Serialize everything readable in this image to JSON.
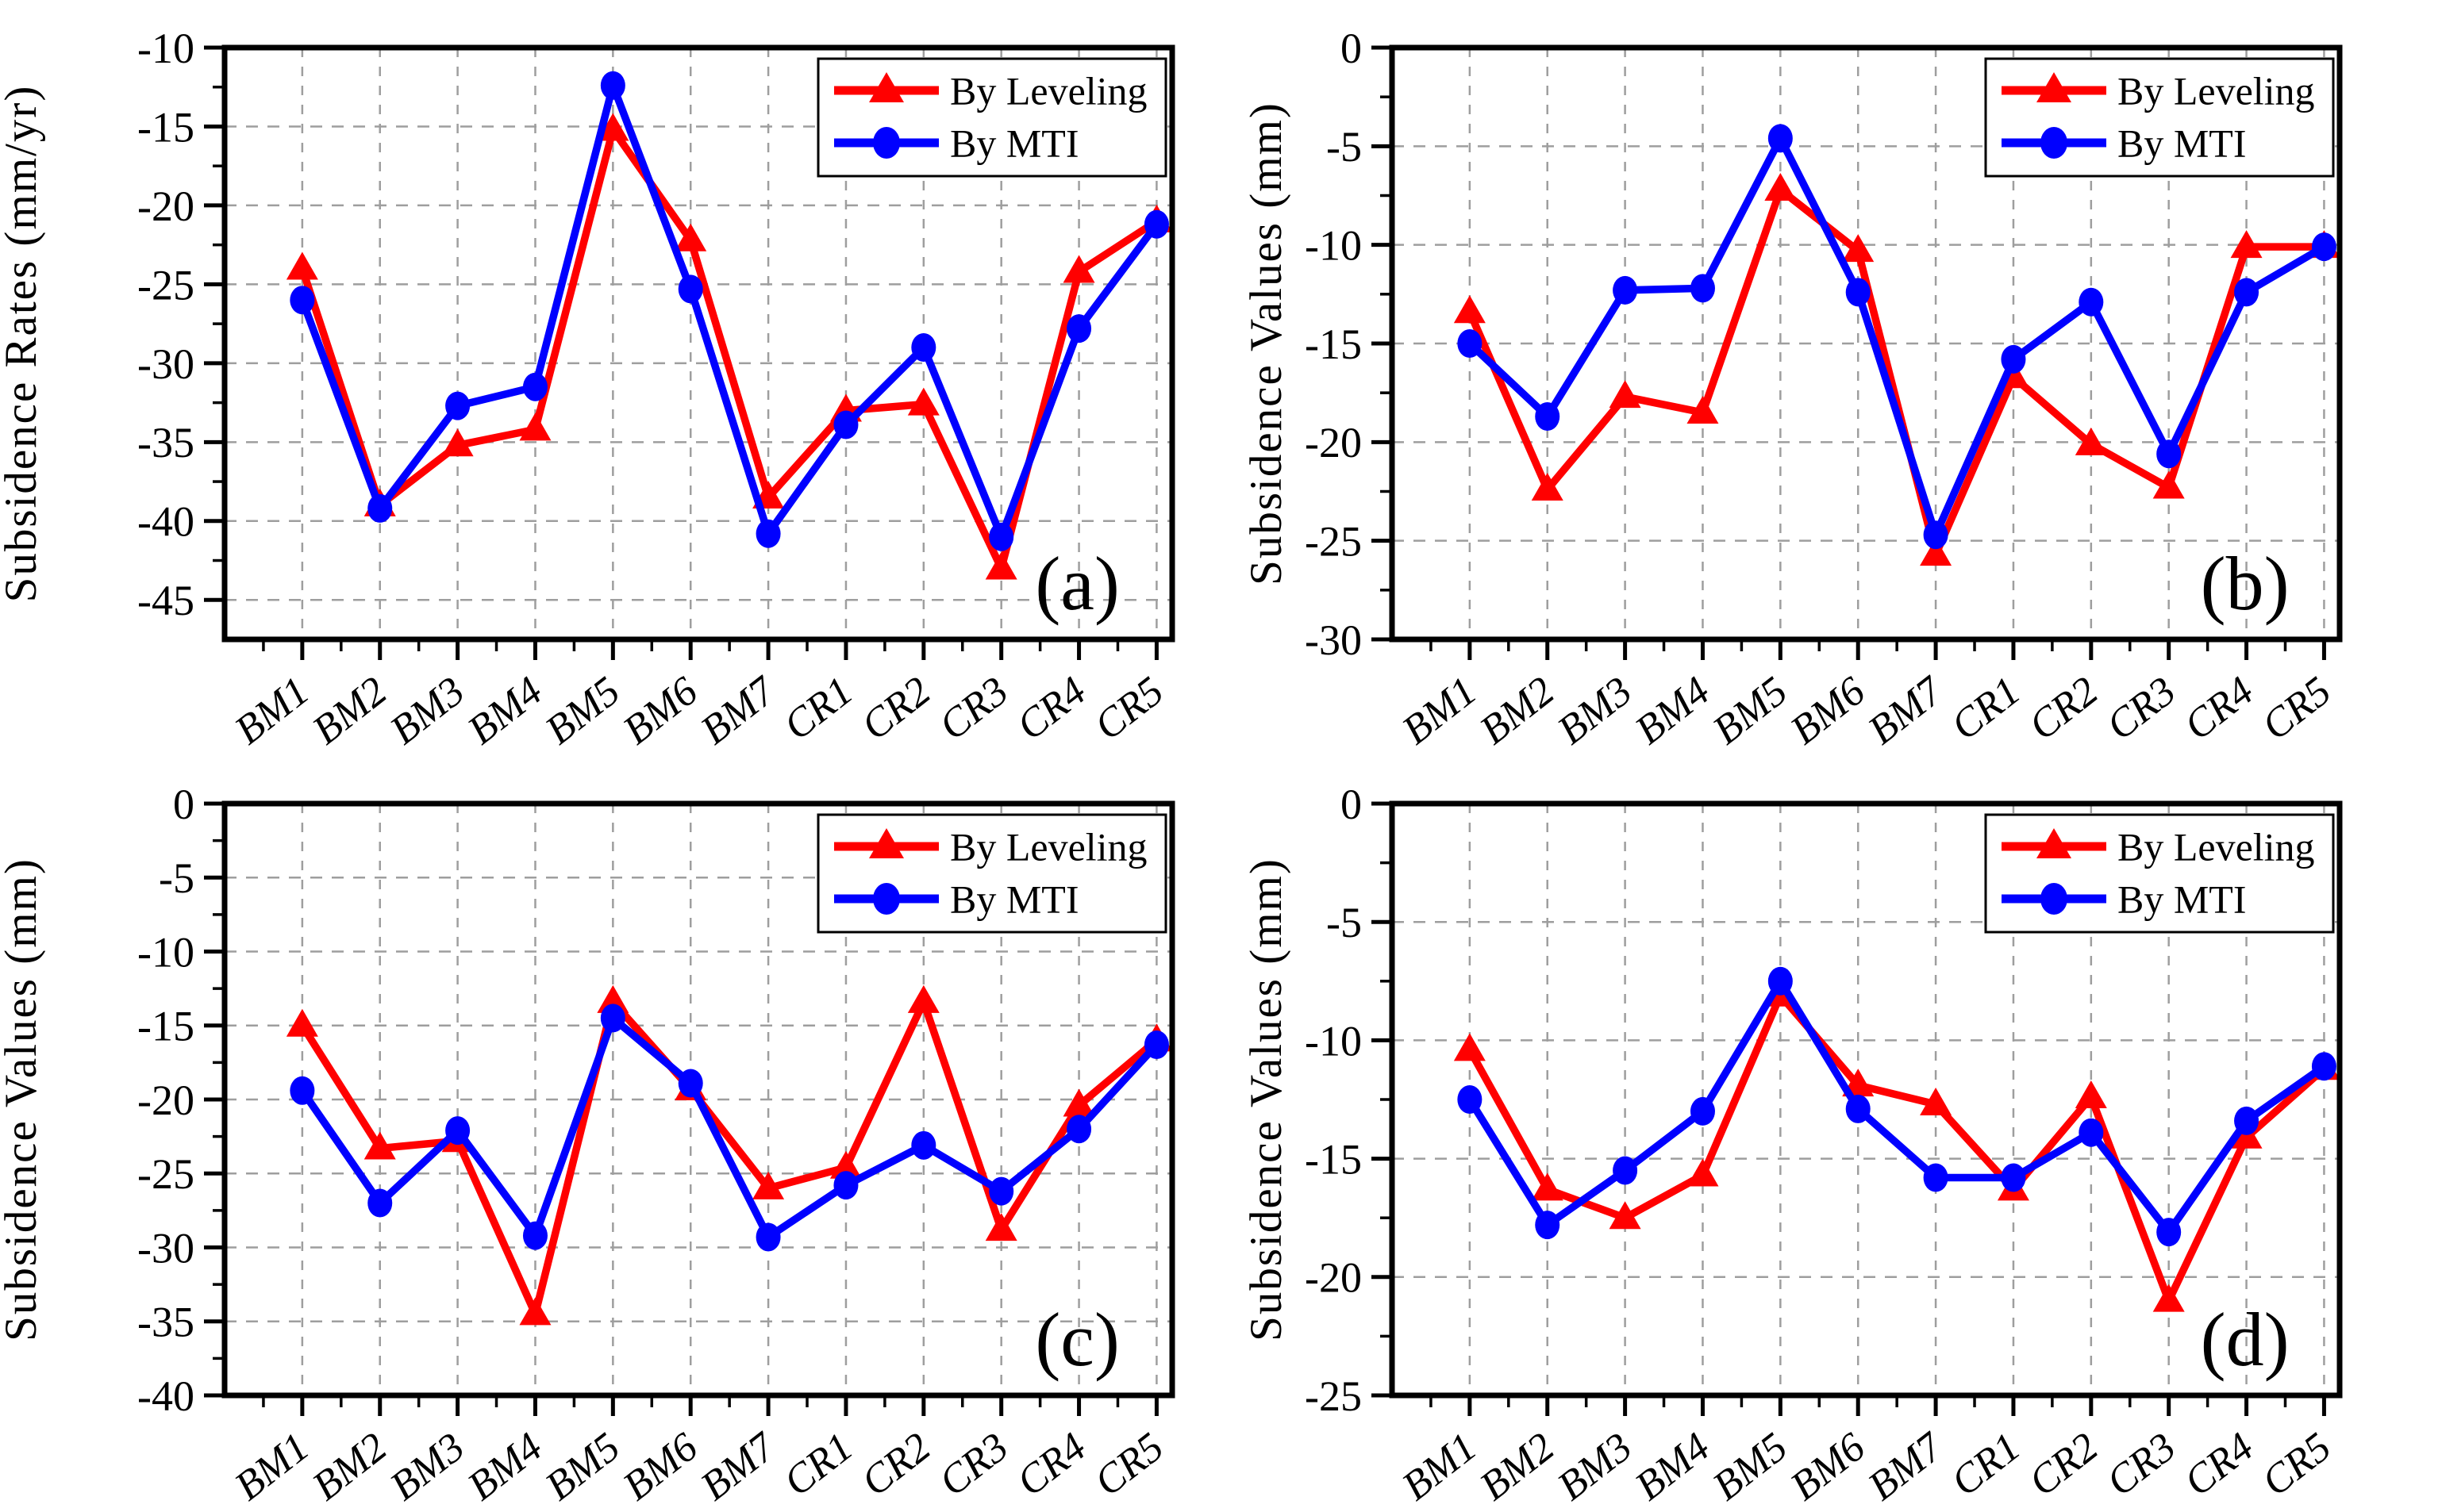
{
  "figure": {
    "background": "#ffffff",
    "accent_red": "#ff0000",
    "accent_blue": "#0000ff",
    "grid_color": "#9e9e9e",
    "legend": {
      "leveling_label": "By Leveling",
      "mti_label": "By MTI"
    }
  },
  "chart_data": [
    {
      "id": "a",
      "type": "line",
      "panel_label": "(a)",
      "ylabel": "Subsidence Rates (mm/yr)",
      "grid": true,
      "legend_position": "top-right",
      "categories": [
        "BM1",
        "BM2",
        "BM3",
        "BM4",
        "BM5",
        "BM6",
        "BM7",
        "CR1",
        "CR2",
        "CR3",
        "CR4",
        "CR5"
      ],
      "ylim_top": -10,
      "ylim_bottom": -47.5,
      "yticks": [
        -10,
        -15,
        -20,
        -25,
        -30,
        -35,
        -40,
        -45
      ],
      "series": [
        {
          "key": "leveling",
          "name": "By Leveling",
          "marker": "triangle",
          "color": "#ff0000",
          "values": [
            -24.0,
            -39.0,
            -35.2,
            -34.2,
            -15.2,
            -22.2,
            -38.5,
            -33.0,
            -32.6,
            -43.0,
            -24.2,
            -21.0
          ]
        },
        {
          "key": "mti",
          "name": "By MTI",
          "marker": "circle",
          "color": "#0000ff",
          "values": [
            -26.0,
            -39.2,
            -32.7,
            -31.5,
            -12.4,
            -25.3,
            -40.8,
            -33.9,
            -29.0,
            -41.0,
            -27.8,
            -21.2
          ]
        }
      ]
    },
    {
      "id": "b",
      "type": "line",
      "panel_label": "(b)",
      "ylabel": "Subsidence Values (mm)",
      "grid": true,
      "legend_position": "top-right",
      "categories": [
        "BM1",
        "BM2",
        "BM3",
        "BM4",
        "BM5",
        "BM6",
        "BM7",
        "CR1",
        "CR2",
        "CR3",
        "CR4",
        "CR5"
      ],
      "ylim_top": 0,
      "ylim_bottom": -30,
      "yticks": [
        0,
        -5,
        -10,
        -15,
        -20,
        -25,
        -30
      ],
      "series": [
        {
          "key": "leveling",
          "name": "By Leveling",
          "marker": "triangle",
          "color": "#ff0000",
          "values": [
            -13.4,
            -22.4,
            -17.7,
            -18.5,
            -7.2,
            -10.3,
            -25.7,
            -16.7,
            -20.1,
            -22.3,
            -10.1,
            -10.1
          ]
        },
        {
          "key": "mti",
          "name": "By MTI",
          "marker": "circle",
          "color": "#0000ff",
          "values": [
            -15.0,
            -18.7,
            -12.3,
            -12.2,
            -4.6,
            -12.4,
            -24.7,
            -15.8,
            -12.9,
            -20.6,
            -12.4,
            -10.1
          ]
        }
      ]
    },
    {
      "id": "c",
      "type": "line",
      "panel_label": "(c)",
      "ylabel": "Subsidence Values (mm)",
      "grid": true,
      "legend_position": "top-right",
      "categories": [
        "BM1",
        "BM2",
        "BM3",
        "BM4",
        "BM5",
        "BM6",
        "BM7",
        "CR1",
        "CR2",
        "CR3",
        "CR4",
        "CR5"
      ],
      "ylim_top": 0,
      "ylim_bottom": -40,
      "yticks": [
        0,
        -5,
        -10,
        -15,
        -20,
        -25,
        -30,
        -35,
        -40
      ],
      "series": [
        {
          "key": "leveling",
          "name": "By Leveling",
          "marker": "triangle",
          "color": "#ff0000",
          "values": [
            -15.0,
            -23.3,
            -22.8,
            -34.5,
            -13.4,
            -19.3,
            -26.0,
            -24.6,
            -13.4,
            -28.8,
            -20.4,
            -16.0
          ]
        },
        {
          "key": "mti",
          "name": "By MTI",
          "marker": "circle",
          "color": "#0000ff",
          "values": [
            -19.4,
            -27.0,
            -22.1,
            -29.2,
            -14.5,
            -18.9,
            -29.3,
            -25.8,
            -23.1,
            -26.2,
            -22.0,
            -16.3
          ]
        }
      ]
    },
    {
      "id": "d",
      "type": "line",
      "panel_label": "(d)",
      "ylabel": "Subsidence Values (mm)",
      "grid": true,
      "legend_position": "top-right",
      "categories": [
        "BM1",
        "BM2",
        "BM3",
        "BM4",
        "BM5",
        "BM6",
        "BM7",
        "CR1",
        "CR2",
        "CR3",
        "CR4",
        "CR5"
      ],
      "ylim_top": 0,
      "ylim_bottom": -25,
      "yticks": [
        0,
        -5,
        -10,
        -15,
        -20,
        -25
      ],
      "series": [
        {
          "key": "leveling",
          "name": "By Leveling",
          "marker": "triangle",
          "color": "#ff0000",
          "values": [
            -10.4,
            -16.3,
            -17.5,
            -15.7,
            -8.1,
            -11.9,
            -12.7,
            -16.3,
            -12.4,
            -21.0,
            -14.1,
            -11.2
          ]
        },
        {
          "key": "mti",
          "name": "By MTI",
          "marker": "circle",
          "color": "#0000ff",
          "values": [
            -12.5,
            -17.8,
            -15.5,
            -13.0,
            -7.5,
            -12.9,
            -15.8,
            -15.8,
            -13.9,
            -18.1,
            -13.4,
            -11.1
          ]
        }
      ]
    }
  ]
}
